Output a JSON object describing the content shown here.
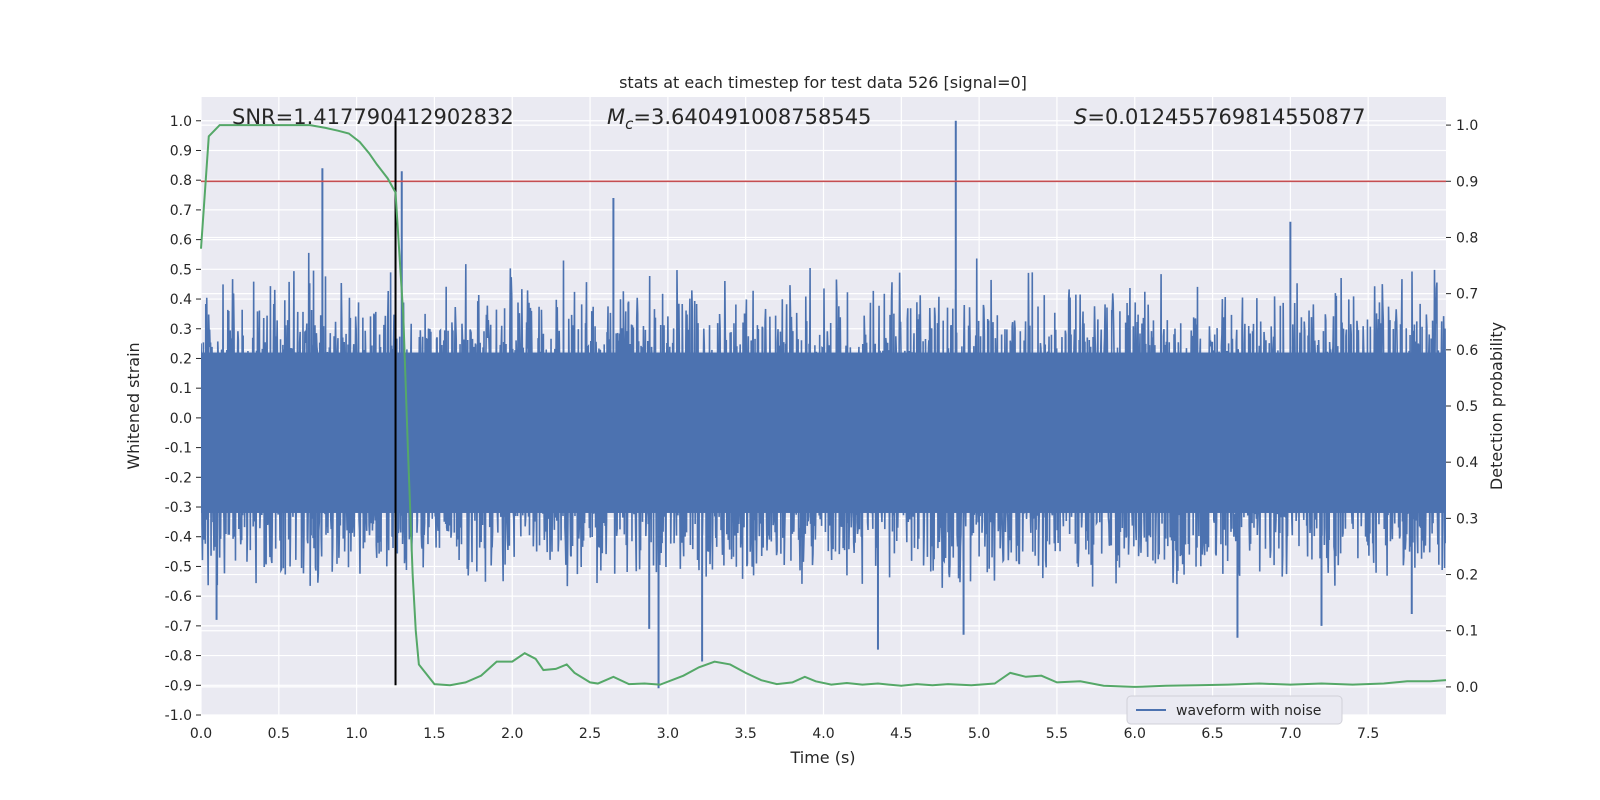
{
  "chart_data": {
    "type": "line",
    "title": "stats at each timestep for test data 526 [signal=0]",
    "xlabel": "Time (s)",
    "ylabel": "Whitened strain",
    "ylabel_right": "Detection probability",
    "xlim": [
      0.0,
      8.0
    ],
    "ylim": [
      -1.0,
      1.08
    ],
    "ylim_right": [
      -0.05,
      1.05
    ],
    "x_ticks": [
      "0.0",
      "0.5",
      "1.0",
      "1.5",
      "2.0",
      "2.5",
      "3.0",
      "3.5",
      "4.0",
      "4.5",
      "5.0",
      "5.5",
      "6.0",
      "6.5",
      "7.0",
      "7.5"
    ],
    "y_ticks": [
      "1.0",
      "0.9",
      "0.8",
      "0.7",
      "0.6",
      "0.5",
      "0.4",
      "0.3",
      "0.2",
      "0.1",
      "0.0",
      "-0.1",
      "-0.2",
      "-0.3",
      "-0.4",
      "-0.5",
      "-0.6",
      "-0.7",
      "-0.8",
      "-0.9",
      "-1.0"
    ],
    "y_ticks_right": [
      "1.0",
      "0.9",
      "0.8",
      "0.7",
      "0.6",
      "0.5",
      "0.4",
      "0.3",
      "0.2",
      "0.1",
      "0.0"
    ],
    "grid": true,
    "legend": {
      "entries": [
        "waveform with noise"
      ],
      "placement": "bottom-right"
    },
    "annotations": {
      "snr": {
        "prefix": "SNR=",
        "value": "1.417790412902832"
      },
      "mc": {
        "symbol": "M",
        "sub": "c",
        "value": "=3.640491008758545"
      },
      "s": {
        "symbol": "S",
        "value": "=0.012455769814550877"
      }
    },
    "threshold": {
      "axis": "right",
      "value": 0.9
    },
    "vertical_marker": {
      "x": 1.25,
      "y_range": [
        -0.9,
        1.0
      ]
    },
    "series": [
      {
        "name": "waveform with noise",
        "axis": "left",
        "description_values": "noise",
        "envelope": {
          "upper_typical": 0.4,
          "lower_typical": -0.4
        },
        "spikes": [
          {
            "x": 0.78,
            "y": 0.84
          },
          {
            "x": 1.29,
            "y": 0.83
          },
          {
            "x": 2.65,
            "y": 0.74
          },
          {
            "x": 4.85,
            "y": 1.0
          },
          {
            "x": 7.0,
            "y": 0.66
          },
          {
            "x": 2.94,
            "y": -0.91
          },
          {
            "x": 3.22,
            "y": -0.82
          },
          {
            "x": 4.35,
            "y": -0.78
          },
          {
            "x": 6.66,
            "y": -0.74
          },
          {
            "x": 0.1,
            "y": -0.68
          },
          {
            "x": 2.88,
            "y": -0.71
          },
          {
            "x": 7.78,
            "y": -0.66
          },
          {
            "x": 4.9,
            "y": -0.73
          },
          {
            "x": 7.2,
            "y": -0.7
          }
        ]
      },
      {
        "name": "detection probability",
        "axis": "right",
        "x": [
          0.0,
          0.05,
          0.12,
          0.25,
          0.5,
          0.7,
          0.8,
          0.88,
          0.95,
          1.02,
          1.08,
          1.13,
          1.2,
          1.25,
          1.3,
          1.33,
          1.36,
          1.38,
          1.4,
          1.5,
          1.6,
          1.7,
          1.8,
          1.9,
          2.0,
          2.08,
          2.15,
          2.2,
          2.28,
          2.35,
          2.4,
          2.5,
          2.55,
          2.65,
          2.75,
          2.85,
          2.95,
          3.1,
          3.2,
          3.3,
          3.4,
          3.5,
          3.6,
          3.7,
          3.8,
          3.88,
          3.95,
          4.05,
          4.15,
          4.25,
          4.35,
          4.5,
          4.6,
          4.7,
          4.8,
          4.95,
          5.1,
          5.2,
          5.3,
          5.4,
          5.5,
          5.65,
          5.8,
          6.0,
          6.2,
          6.4,
          6.6,
          6.8,
          7.0,
          7.2,
          7.4,
          7.6,
          7.75,
          7.9,
          8.0
        ],
        "y": [
          0.78,
          0.98,
          1.0,
          1.0,
          1.0,
          1.0,
          0.995,
          0.99,
          0.985,
          0.97,
          0.95,
          0.93,
          0.905,
          0.88,
          0.66,
          0.42,
          0.2,
          0.1,
          0.04,
          0.005,
          0.003,
          0.008,
          0.02,
          0.045,
          0.045,
          0.06,
          0.05,
          0.03,
          0.032,
          0.04,
          0.025,
          0.008,
          0.006,
          0.018,
          0.005,
          0.006,
          0.004,
          0.02,
          0.035,
          0.045,
          0.04,
          0.025,
          0.012,
          0.005,
          0.008,
          0.018,
          0.01,
          0.004,
          0.007,
          0.004,
          0.006,
          0.002,
          0.005,
          0.003,
          0.005,
          0.003,
          0.006,
          0.025,
          0.018,
          0.02,
          0.008,
          0.01,
          0.002,
          0.0,
          0.002,
          0.003,
          0.004,
          0.006,
          0.004,
          0.006,
          0.004,
          0.006,
          0.01,
          0.01,
          0.012
        ]
      }
    ]
  },
  "colors": {
    "plot_bg": "#eaeaf2",
    "grid": "#ffffff",
    "waveform": "#4c72b0",
    "probability": "#55a868",
    "threshold": "#c44e52",
    "marker": "#000000"
  }
}
